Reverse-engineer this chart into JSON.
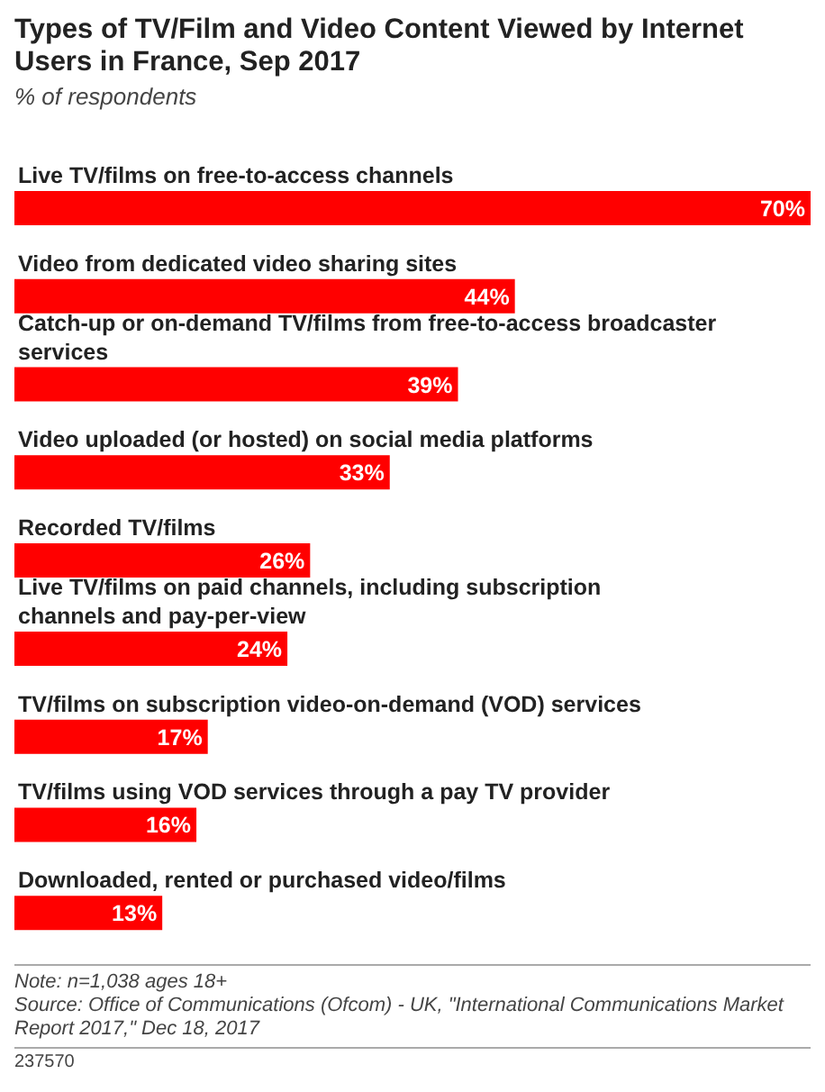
{
  "chart_data": {
    "type": "bar",
    "orientation": "horizontal",
    "title": "Types of TV/Film and Video Content Viewed by Internet Users in France, Sep 2017",
    "subtitle": "% of respondents",
    "categories": [
      "Live TV/films on free-to-access channels",
      "Video from dedicated video sharing sites",
      "Catch-up or on-demand TV/films from free-to-access broadcaster services",
      "Video uploaded (or hosted) on social media platforms",
      "Recorded TV/films",
      "Live TV/films on paid channels, including subscription channels and pay-per-view",
      "TV/films on subscription video-on-demand (VOD) services",
      "TV/films using VOD services through a pay TV provider",
      "Downloaded, rented or purchased video/films"
    ],
    "values": [
      70,
      44,
      39,
      33,
      26,
      24,
      17,
      16,
      13
    ],
    "value_labels": [
      "70%",
      "44%",
      "39%",
      "33%",
      "26%",
      "24%",
      "17%",
      "16%",
      "13%"
    ],
    "color": "#ff0000",
    "annotations": [
      "Note: n=1,038 ages 18+",
      "Source: Office of Communications (Ofcom) - UK, \"International Communications Market Report 2017,\" Dec 18, 2017",
      "237570"
    ]
  }
}
